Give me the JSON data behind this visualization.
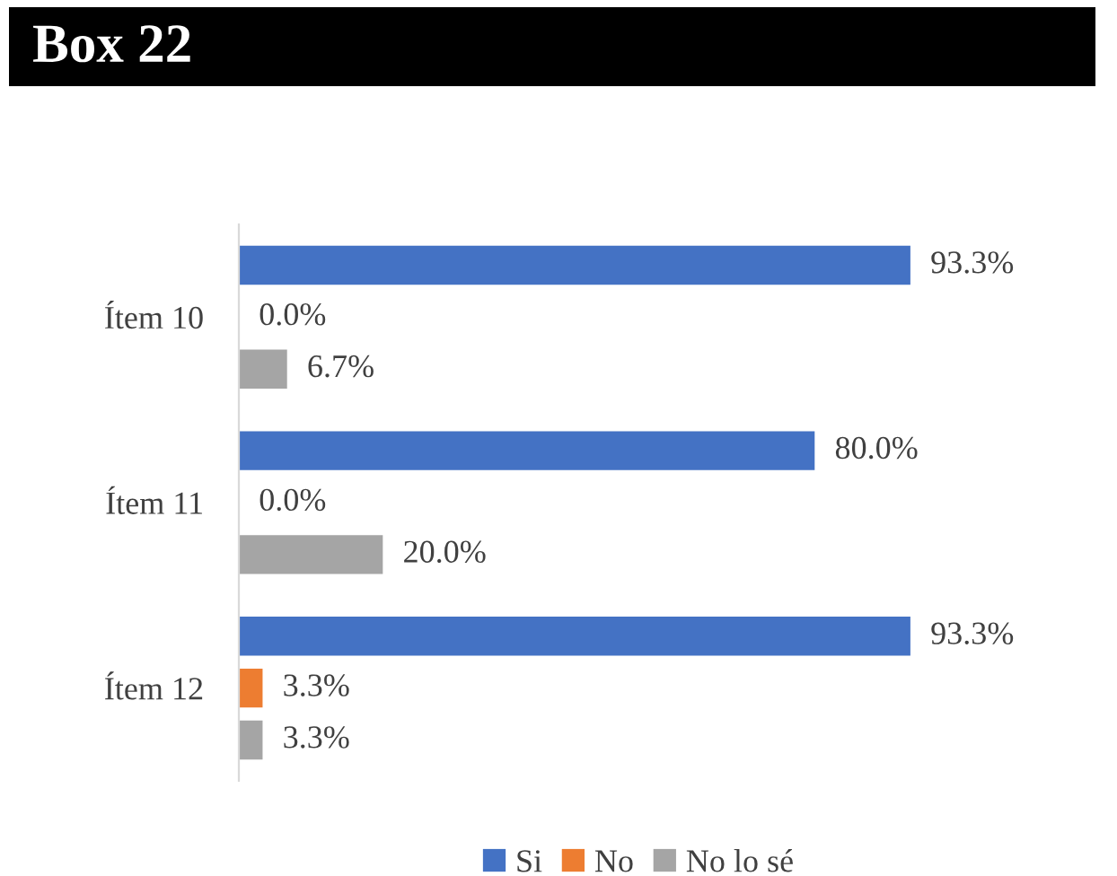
{
  "chart_data": {
    "type": "bar",
    "orientation": "horizontal",
    "title": "Box 22",
    "categories": [
      "Ítem 10",
      "Ítem 11",
      "Ítem 12"
    ],
    "series": [
      {
        "name": "Si",
        "color": "#4472c4",
        "values": [
          93.3,
          80.0,
          93.3
        ],
        "value_labels": [
          "93.3%",
          "80.0%",
          "93.3%"
        ]
      },
      {
        "name": "No",
        "color": "#ed7d31",
        "values": [
          0.0,
          0.0,
          3.3
        ],
        "value_labels": [
          "0.0%",
          "0.0%",
          "3.3%"
        ]
      },
      {
        "name": "No lo sé",
        "color": "#a5a5a5",
        "values": [
          6.7,
          20.0,
          3.3
        ],
        "value_labels": [
          "6.7%",
          "20.0%",
          "3.3%"
        ]
      }
    ],
    "legend": "bottom",
    "grid": false
  }
}
